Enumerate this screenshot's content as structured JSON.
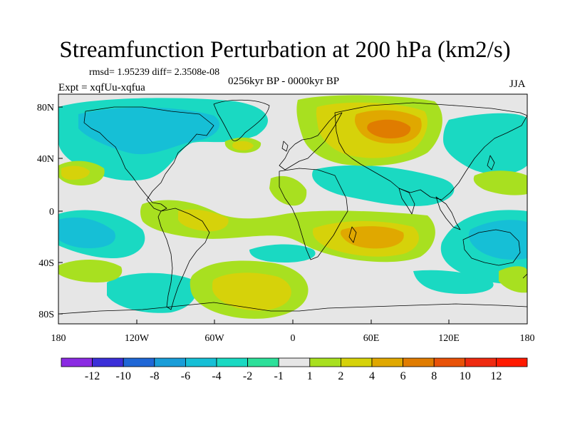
{
  "title": "Streamfunction Perturbation at 200 hPa (km2/s)",
  "stats": "rmsd= 1.95239 diff= 2.3508e-08",
  "period": "0256kyr BP - 0000kyr BP",
  "experiment": "Expt = xqfUu-xqfua",
  "season": "JJA",
  "map": {
    "lat_ticks": [
      "80N",
      "40N",
      "0",
      "40S",
      "80S"
    ],
    "lon_ticks": [
      "180",
      "120W",
      "60W",
      "0",
      "60E",
      "120E",
      "180"
    ]
  },
  "colorbar": {
    "labels": [
      "-12",
      "-10",
      "-8",
      "-6",
      "-4",
      "-2",
      "-1",
      "1",
      "2",
      "4",
      "6",
      "8",
      "10",
      "12"
    ],
    "colors": [
      "#8a2be2",
      "#3b2fd8",
      "#1f67d6",
      "#199dd8",
      "#16bfd6",
      "#1ad9c2",
      "#2de09a",
      "#e6e6e6",
      "#a8e020",
      "#d6d20a",
      "#e0a800",
      "#e07c00",
      "#e85208",
      "#ee2a10",
      "#ff1a00"
    ]
  },
  "palette": {
    "neutral": "#e6e6e6",
    "land_outline": "#000000"
  }
}
